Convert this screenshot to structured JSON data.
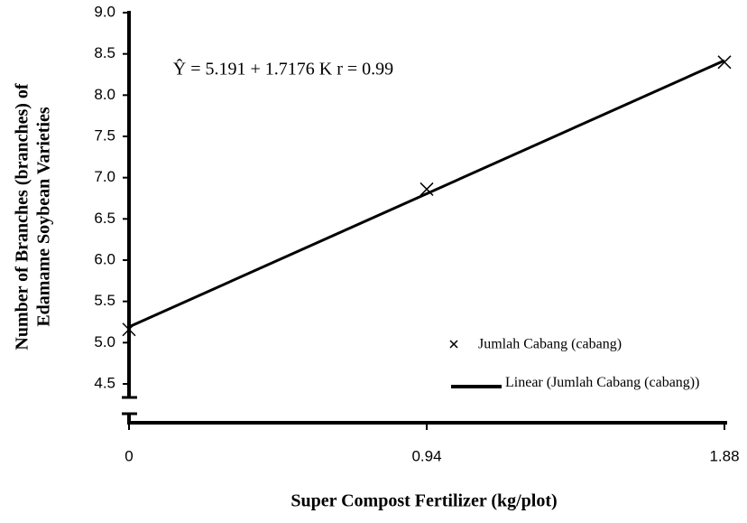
{
  "chart_data": {
    "type": "scatter",
    "ylabel": [
      "Number of Branches (branches) of",
      "Edamame Soybean Varieties"
    ],
    "xlabel": "Super Compost Fertilizer (kg/plot)",
    "annotation": "Ŷ = 5.191 + 1.7176 K  r = 0.99",
    "xlim": [
      0,
      1.88
    ],
    "xticks": [
      0,
      0.94,
      1.88
    ],
    "ylim": [
      4.5,
      9.0
    ],
    "yticks": [
      {
        "value": 4.5,
        "label": "4.5"
      },
      {
        "value": 5.0,
        "label": "5.0"
      },
      {
        "value": 5.5,
        "label": "5.5"
      },
      {
        "value": 6.0,
        "label": "6.0"
      },
      {
        "value": 6.5,
        "label": "6.5"
      },
      {
        "value": 7.0,
        "label": "7.0"
      },
      {
        "value": 7.5,
        "label": "7.5"
      },
      {
        "value": 8.0,
        "label": "8.0"
      },
      {
        "value": 8.5,
        "label": "8.5"
      },
      {
        "value": 9.0,
        "label": "9.0"
      }
    ],
    "series": [
      {
        "name": "Jumlah Cabang (cabang)",
        "color": "#000000",
        "marker": "x",
        "x": [
          0,
          0.94,
          1.88
        ],
        "values": [
          5.16,
          6.86,
          8.4
        ]
      },
      {
        "name": "Linear (Jumlah Cabang (cabang))",
        "color": "#000000",
        "marker": "line",
        "x": [
          0,
          1.88
        ],
        "values": [
          5.191,
          8.42
        ]
      }
    ]
  }
}
